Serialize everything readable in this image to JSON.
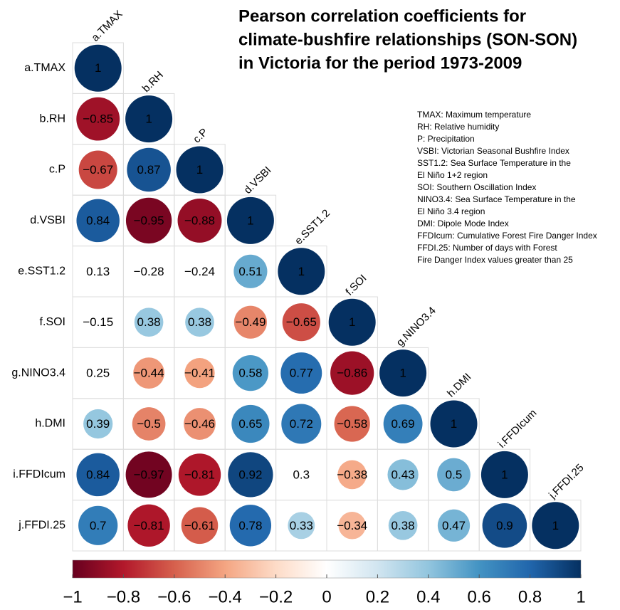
{
  "chart_data": {
    "type": "corrplot",
    "title": [
      "Pearson correlation coefficients for",
      "climate-bushfire relationships (SON-SON)",
      "in Victoria for the period 1973-2009"
    ],
    "variables": [
      "a.TMAX",
      "b.RH",
      "c.P",
      "d.VSBI",
      "e.SST1.2",
      "f.SOI",
      "g.NINO3.4",
      "h.DMI",
      "i.FFDIcum",
      "j.FFDI.25"
    ],
    "values": [
      [
        1
      ],
      [
        -0.85,
        1
      ],
      [
        -0.67,
        0.87,
        1
      ],
      [
        0.84,
        -0.95,
        -0.88,
        1
      ],
      [
        0.13,
        -0.28,
        -0.24,
        0.51,
        1
      ],
      [
        -0.15,
        0.38,
        0.38,
        -0.49,
        -0.65,
        1
      ],
      [
        0.25,
        -0.44,
        -0.41,
        0.58,
        0.77,
        -0.86,
        1
      ],
      [
        0.39,
        -0.5,
        -0.46,
        0.65,
        0.72,
        -0.58,
        0.69,
        1
      ],
      [
        0.84,
        -0.97,
        -0.81,
        0.92,
        0.3,
        -0.38,
        0.43,
        0.5,
        1
      ],
      [
        0.7,
        -0.81,
        -0.61,
        0.78,
        0.33,
        -0.34,
        0.38,
        0.47,
        0.9,
        1
      ]
    ],
    "value_labels": [
      [
        "1"
      ],
      [
        "−0.85",
        "1"
      ],
      [
        "−0.67",
        "0.87",
        "1"
      ],
      [
        "0.84",
        "−0.95",
        "−0.88",
        "1"
      ],
      [
        "0.13",
        "−0.28",
        "−0.24",
        "0.51",
        "1"
      ],
      [
        "−0.15",
        "0.38",
        "0.38",
        "−0.49",
        "−0.65",
        "1"
      ],
      [
        "0.25",
        "−0.44",
        "−0.41",
        "0.58",
        "0.77",
        "−0.86",
        "1"
      ],
      [
        "0.39",
        "−0.5",
        "−0.46",
        "0.65",
        "0.72",
        "−0.58",
        "0.69",
        "1"
      ],
      [
        "0.84",
        "−0.97",
        "−0.81",
        "0.92",
        "0.3",
        "−0.38",
        "0.43",
        "0.5",
        "1"
      ],
      [
        "0.7",
        "−0.81",
        "−0.61",
        "0.78",
        "0.33",
        "−0.34",
        "0.38",
        "0.47",
        "0.9",
        "1"
      ]
    ],
    "blank_cells": [
      [
        4,
        0
      ],
      [
        4,
        1
      ],
      [
        4,
        2
      ],
      [
        5,
        0
      ],
      [
        6,
        0
      ],
      [
        8,
        4
      ]
    ],
    "notes": [
      "TMAX: Maximum temperature",
      "RH: Relative humidity",
      "P: Precipitation",
      "VSBI: Victorian Seasonal Bushfire Index",
      "SST1.2: Sea Surface Temperature in the",
      "El Niño 1+2 region",
      "SOI: Southern Oscillation Index",
      "NINO3.4: Sea Surface Temperature in the",
      "El Niño 3.4 region",
      "DMI: Dipole Mode Index",
      "FFDIcum: Cumulative Forest Fire Danger Index",
      "FFDI.25: Number of days with Forest",
      "Fire Danger Index values greater than 25"
    ],
    "clim": [
      -1,
      1
    ],
    "colors": [
      "#67001F",
      "#B2182B",
      "#D6604D",
      "#F4A582",
      "#FDDBC7",
      "#FFFFFF",
      "#D1E5F0",
      "#92C5DE",
      "#4393C3",
      "#2166AC",
      "#053061"
    ],
    "colorbar_ticks": [
      {
        "value": -1,
        "label": "−1"
      },
      {
        "value": -0.8,
        "label": "−0.8"
      },
      {
        "value": -0.6,
        "label": "−0.6"
      },
      {
        "value": -0.4,
        "label": "−0.4"
      },
      {
        "value": -0.2,
        "label": "−0.2"
      },
      0,
      0.2,
      0.4,
      0.6,
      0.8,
      1
    ]
  }
}
